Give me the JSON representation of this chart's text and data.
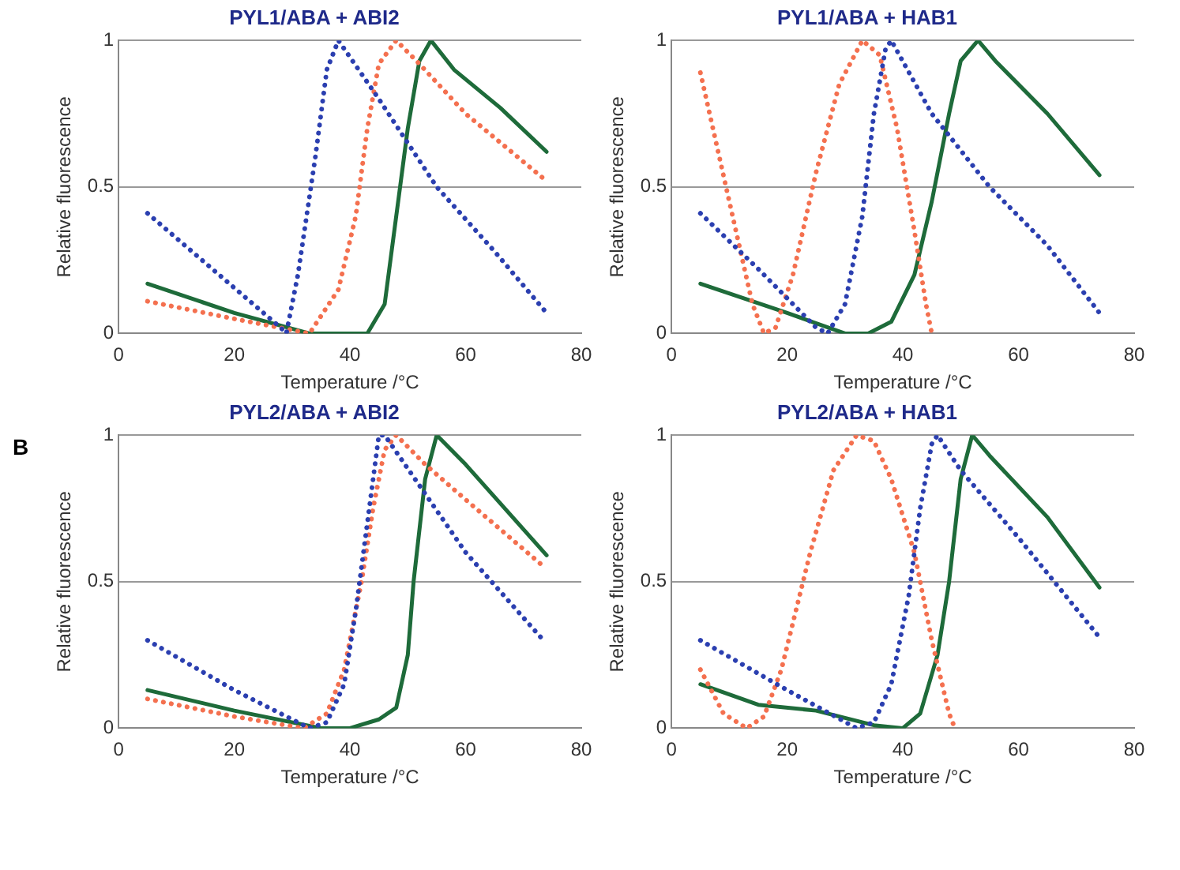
{
  "chart_data": [
    {
      "type": "line",
      "title": "PYL1/ABA + ABI2",
      "xlabel": "Temperature /°C",
      "ylabel": "Relative fluorescence",
      "xlim": [
        0,
        80
      ],
      "xticks": [
        0,
        20,
        40,
        60,
        80
      ],
      "ylim": [
        0,
        1
      ],
      "yticks": [
        0,
        0.5,
        1
      ],
      "grid": "y",
      "marker": "none",
      "series": [
        {
          "color": "#2b3fb0",
          "line_style": "dotted",
          "x": [
            5,
            28,
            29,
            31,
            34,
            36,
            38,
            45,
            55,
            65,
            74
          ],
          "values": [
            0.41,
            0.02,
            0,
            0.2,
            0.6,
            0.9,
            1,
            0.8,
            0.5,
            0.28,
            0.07
          ]
        },
        {
          "color": "#f4704f",
          "line_style": "dotted",
          "x": [
            5,
            20,
            33,
            38,
            41,
            43,
            45,
            48,
            52,
            60,
            74
          ],
          "values": [
            0.11,
            0.05,
            0,
            0.15,
            0.4,
            0.7,
            0.92,
            1,
            0.92,
            0.75,
            0.52
          ]
        },
        {
          "color": "#1e6b3a",
          "line_style": "solid",
          "x": [
            5,
            20,
            33,
            43,
            46,
            48,
            50,
            52,
            54,
            58,
            66,
            74
          ],
          "values": [
            0.17,
            0.07,
            0,
            0,
            0.1,
            0.4,
            0.7,
            0.93,
            1,
            0.9,
            0.77,
            0.62
          ]
        }
      ]
    },
    {
      "type": "line",
      "title": "PYL1/ABA + HAB1",
      "xlabel": "Temperature /°C",
      "ylabel": "Relative fluorescence",
      "xlim": [
        0,
        80
      ],
      "xticks": [
        0,
        20,
        40,
        60,
        80
      ],
      "ylim": [
        0,
        1
      ],
      "yticks": [
        0,
        0.5,
        1
      ],
      "grid": "y",
      "marker": "none",
      "series": [
        {
          "color": "#2b3fb0",
          "line_style": "dotted",
          "x": [
            5,
            15,
            25,
            27,
            30,
            33,
            35,
            37,
            38,
            45,
            55,
            65,
            74
          ],
          "values": [
            0.41,
            0.22,
            0.02,
            0,
            0.1,
            0.4,
            0.75,
            0.97,
            1,
            0.75,
            0.5,
            0.3,
            0.07
          ]
        },
        {
          "color": "#f4704f",
          "line_style": "dotted",
          "x": [
            5,
            10,
            14,
            16,
            18,
            21,
            25,
            29,
            33,
            36,
            39,
            42,
            44,
            45
          ],
          "values": [
            0.89,
            0.45,
            0.1,
            0,
            0.02,
            0.2,
            0.55,
            0.85,
            1,
            0.95,
            0.7,
            0.35,
            0.1,
            0
          ]
        },
        {
          "color": "#1e6b3a",
          "line_style": "solid",
          "x": [
            5,
            20,
            30,
            34,
            38,
            42,
            45,
            48,
            50,
            53,
            56,
            65,
            74
          ],
          "values": [
            0.17,
            0.07,
            0,
            0,
            0.04,
            0.2,
            0.45,
            0.75,
            0.93,
            1,
            0.93,
            0.75,
            0.54
          ]
        }
      ]
    },
    {
      "type": "line",
      "title": "PYL2/ABA + ABI2",
      "xlabel": "Temperature /°C",
      "ylabel": "Relative fluorescence",
      "annotations": [
        "B"
      ],
      "xlim": [
        0,
        80
      ],
      "xticks": [
        0,
        20,
        40,
        60,
        80
      ],
      "ylim": [
        0,
        1
      ],
      "yticks": [
        0,
        0.5,
        1
      ],
      "grid": "y",
      "marker": "none",
      "series": [
        {
          "color": "#2b3fb0",
          "line_style": "dotted",
          "x": [
            5,
            20,
            33,
            36,
            39,
            41,
            43,
            45,
            46,
            53,
            60,
            73
          ],
          "values": [
            0.3,
            0.13,
            0,
            0.02,
            0.15,
            0.4,
            0.7,
            1,
            1,
            0.8,
            0.6,
            0.31
          ]
        },
        {
          "color": "#f4704f",
          "line_style": "dotted",
          "x": [
            5,
            20,
            32,
            36,
            39,
            42,
            44,
            46,
            48,
            53,
            60,
            73
          ],
          "values": [
            0.1,
            0.04,
            0,
            0.05,
            0.2,
            0.5,
            0.75,
            0.95,
            1,
            0.9,
            0.78,
            0.56
          ]
        },
        {
          "color": "#1e6b3a",
          "line_style": "solid",
          "x": [
            5,
            20,
            35,
            40,
            45,
            48,
            50,
            51,
            53,
            55,
            60,
            74
          ],
          "values": [
            0.13,
            0.06,
            0,
            0,
            0.03,
            0.07,
            0.25,
            0.5,
            0.85,
            1,
            0.9,
            0.59
          ]
        }
      ]
    },
    {
      "type": "line",
      "title": "PYL2/ABA + HAB1",
      "xlabel": "Temperature /°C",
      "ylabel": "Relative fluorescence",
      "xlim": [
        0,
        80
      ],
      "xticks": [
        0,
        20,
        40,
        60,
        80
      ],
      "ylim": [
        0,
        1
      ],
      "yticks": [
        0,
        0.5,
        1
      ],
      "grid": "y",
      "marker": "none",
      "series": [
        {
          "color": "#2b3fb0",
          "line_style": "dotted",
          "x": [
            5,
            20,
            32,
            35,
            38,
            41,
            43,
            45,
            46,
            50,
            60,
            74
          ],
          "values": [
            0.3,
            0.13,
            0,
            0.02,
            0.15,
            0.45,
            0.75,
            0.97,
            1,
            0.88,
            0.65,
            0.31
          ]
        },
        {
          "color": "#f4704f",
          "line_style": "dotted",
          "x": [
            5,
            9,
            13,
            16,
            19,
            24,
            28,
            32,
            35,
            38,
            42,
            45,
            48,
            49
          ],
          "values": [
            0.2,
            0.05,
            0,
            0.04,
            0.2,
            0.6,
            0.88,
            1,
            0.98,
            0.85,
            0.6,
            0.3,
            0.05,
            0
          ]
        },
        {
          "color": "#1e6b3a",
          "line_style": "solid",
          "x": [
            5,
            15,
            25,
            35,
            40,
            43,
            46,
            48,
            50,
            52,
            55,
            65,
            74
          ],
          "values": [
            0.15,
            0.08,
            0.06,
            0.01,
            0,
            0.05,
            0.25,
            0.5,
            0.85,
            1,
            0.93,
            0.72,
            0.48
          ]
        }
      ]
    }
  ]
}
